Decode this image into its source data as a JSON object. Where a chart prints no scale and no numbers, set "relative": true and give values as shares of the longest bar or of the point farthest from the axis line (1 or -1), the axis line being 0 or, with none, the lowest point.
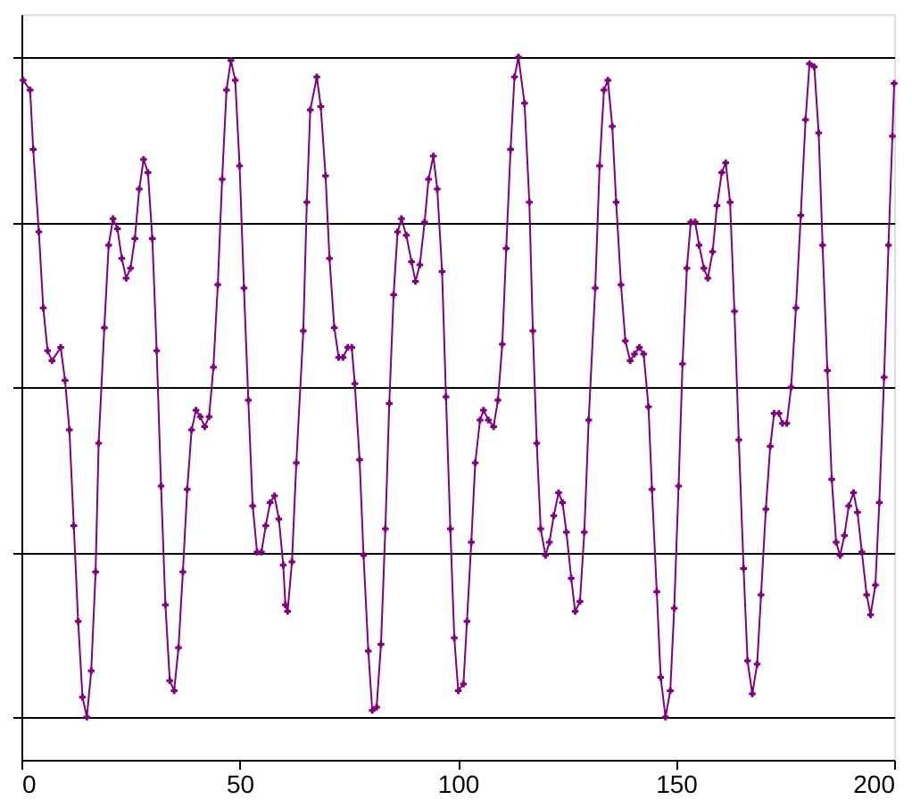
{
  "chart_data": {
    "type": "line",
    "relative": true,
    "x": [
      0.4,
      2,
      2.7,
      4,
      5,
      6,
      7,
      9,
      10,
      11,
      12,
      13,
      14,
      15,
      16,
      17,
      17.7,
      19,
      20,
      21,
      22,
      23,
      24,
      25,
      26,
      27,
      28,
      29,
      30,
      31,
      32,
      33,
      34,
      35,
      36,
      37,
      38,
      39,
      40,
      41,
      42,
      43,
      44,
      45,
      46,
      47,
      48,
      49,
      50,
      51,
      52,
      53,
      54,
      55,
      56,
      57,
      58,
      59,
      60,
      60.5,
      61,
      62,
      63,
      64.6,
      65.4,
      66.2,
      67.7,
      68.6,
      69.7,
      70.6,
      71.7,
      72.7,
      73.7,
      74.8,
      75.7,
      76.4,
      77.5,
      78.4,
      79.5,
      80.4,
      81.4,
      82.4,
      83.4,
      84.3,
      85.3,
      86.2,
      87.1,
      88.2,
      89.4,
      90.3,
      91.3,
      92.4,
      93.3,
      94.4,
      95.3,
      96.4,
      97.3,
      98.3,
      99.2,
      100.1,
      101.3,
      102.1,
      103.1,
      104,
      105.1,
      105.9,
      107,
      108.2,
      109.2,
      110.2,
      111.1,
      112.1,
      113,
      113.9,
      115.3,
      116.4,
      117.2,
      118.1,
      119,
      120.1,
      121,
      122,
      123.1,
      124,
      124.9,
      126,
      126.9,
      128,
      129,
      130,
      131.5,
      132.5,
      133.5,
      134.4,
      135.4,
      136.3,
      137.4,
      138.4,
      139.5,
      140.5,
      141.6,
      142.6,
      143.7,
      144.5,
      145.6,
      146.5,
      147.6,
      148.7,
      149.6,
      150.6,
      151.5,
      152.5,
      153.4,
      154.4,
      155.3,
      156.4,
      157.3,
      158.4,
      159.4,
      160.5,
      161.4,
      162.4,
      163.4,
      164.4,
      165.5,
      166.4,
      167.5,
      168.6,
      169.5,
      170.6,
      171.6,
      172.5,
      173.6,
      174.4,
      175.4,
      176.4,
      177.5,
      178.6,
      179.7,
      180.6,
      181.7,
      182.7,
      183.6,
      184.7,
      185.7,
      186.7,
      187.6,
      188.6,
      189.6,
      190.7,
      191.6,
      192.6,
      193.7,
      194.6,
      195.7,
      196.6,
      197.7,
      198.7,
      199.6,
      200
    ],
    "series": [
      {
        "color": "#800080",
        "values": [
          0.93,
          0.9,
          0.72,
          0.47,
          0.24,
          0.11,
          0.08,
          0.12,
          0.02,
          -0.13,
          -0.42,
          -0.71,
          -0.94,
          -1.0,
          -0.86,
          -0.56,
          -0.17,
          0.18,
          0.43,
          0.51,
          0.48,
          0.39,
          0.33,
          0.36,
          0.45,
          0.6,
          0.69,
          0.65,
          0.45,
          0.11,
          -0.3,
          -0.66,
          -0.89,
          -0.92,
          -0.79,
          -0.56,
          -0.31,
          -0.13,
          -0.07,
          -0.09,
          -0.12,
          -0.09,
          0.06,
          0.31,
          0.63,
          0.9,
          0.99,
          0.93,
          0.67,
          0.3,
          -0.04,
          -0.36,
          -0.5,
          -0.5,
          -0.42,
          -0.35,
          -0.33,
          -0.4,
          -0.54,
          -0.66,
          -0.68,
          -0.53,
          -0.23,
          0.17,
          0.56,
          0.84,
          0.94,
          0.85,
          0.64,
          0.39,
          0.18,
          0.09,
          0.09,
          0.12,
          0.12,
          0.01,
          -0.22,
          -0.51,
          -0.8,
          -0.98,
          -0.97,
          -0.78,
          -0.43,
          -0.05,
          0.28,
          0.47,
          0.51,
          0.46,
          0.38,
          0.32,
          0.37,
          0.5,
          0.63,
          0.7,
          0.6,
          0.35,
          -0.03,
          -0.43,
          -0.76,
          -0.92,
          -0.9,
          -0.71,
          -0.47,
          -0.23,
          -0.1,
          -0.07,
          -0.1,
          -0.12,
          -0.04,
          0.13,
          0.42,
          0.72,
          0.94,
          1.0,
          0.86,
          0.56,
          0.17,
          -0.17,
          -0.43,
          -0.51,
          -0.47,
          -0.39,
          -0.32,
          -0.35,
          -0.44,
          -0.58,
          -0.68,
          -0.65,
          -0.44,
          -0.1,
          0.3,
          0.67,
          0.9,
          0.93,
          0.79,
          0.56,
          0.31,
          0.14,
          0.08,
          0.1,
          0.12,
          0.1,
          -0.06,
          -0.31,
          -0.62,
          -0.88,
          -1.0,
          -0.92,
          -0.67,
          -0.3,
          0.07,
          0.36,
          0.5,
          0.5,
          0.43,
          0.36,
          0.33,
          0.41,
          0.55,
          0.65,
          0.68,
          0.56,
          0.23,
          -0.16,
          -0.55,
          -0.83,
          -0.93,
          -0.84,
          -0.63,
          -0.37,
          -0.18,
          -0.08,
          -0.08,
          -0.11,
          -0.11,
          0.0,
          0.24,
          0.52,
          0.81,
          0.98,
          0.97,
          0.77,
          0.43,
          0.05,
          -0.28,
          -0.47,
          -0.51,
          -0.45,
          -0.36,
          -0.32,
          -0.38,
          -0.5,
          -0.63,
          -0.69,
          -0.6,
          -0.35,
          0.03,
          0.43,
          0.76,
          0.92
        ]
      }
    ],
    "xlim": [
      0,
      200
    ],
    "xticks": [
      0,
      50,
      100,
      150,
      200
    ],
    "grid": "y",
    "tick_labels": "x",
    "marker": "cross",
    "line_style": "solid"
  }
}
